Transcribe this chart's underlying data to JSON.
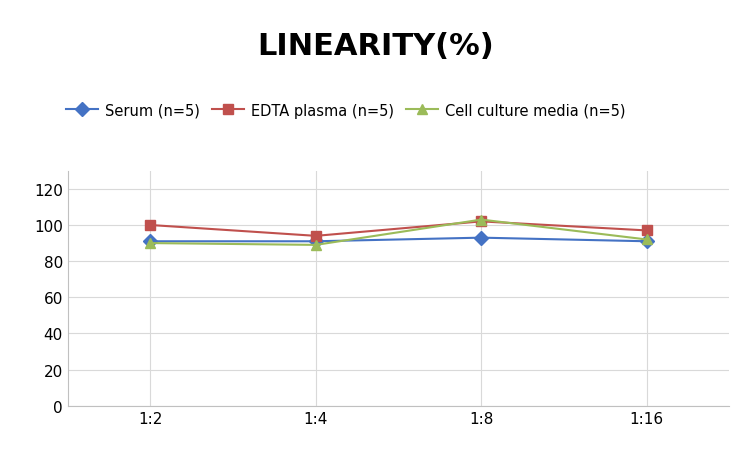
{
  "title": "LINEARITY(%)",
  "x_labels": [
    "1:2",
    "1:4",
    "1:8",
    "1:16"
  ],
  "x_positions": [
    0,
    1,
    2,
    3
  ],
  "series": [
    {
      "label": "Serum (n=5)",
      "color": "#4472C4",
      "marker": "D",
      "values": [
        91,
        91,
        93,
        91
      ]
    },
    {
      "label": "EDTA plasma (n=5)",
      "color": "#C0504D",
      "marker": "s",
      "values": [
        100,
        94,
        102,
        97
      ]
    },
    {
      "label": "Cell culture media (n=5)",
      "color": "#9BBB59",
      "marker": "^",
      "values": [
        90,
        89,
        103,
        92
      ]
    }
  ],
  "ylim": [
    0,
    130
  ],
  "yticks": [
    0,
    20,
    40,
    60,
    80,
    100,
    120
  ],
  "background_color": "#ffffff",
  "title_fontsize": 22,
  "legend_fontsize": 10.5,
  "tick_fontsize": 11,
  "grid_color": "#d9d9d9",
  "spine_color": "#c0c0c0"
}
